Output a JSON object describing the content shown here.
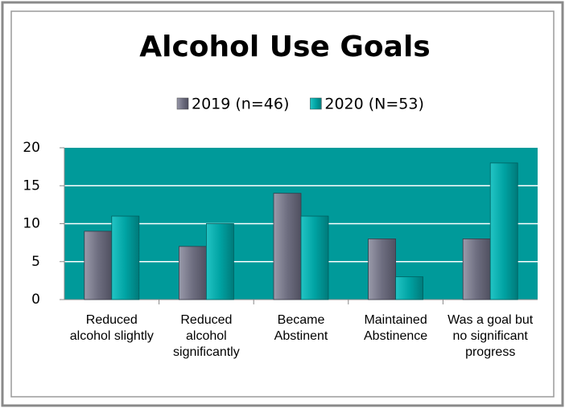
{
  "chart_data": {
    "type": "bar",
    "title": "Alcohol Use Goals",
    "categories": [
      "Reduced alcohol slightly",
      "Reduced alcohol significantly",
      "Became Abstinent",
      "Maintained Abstinence",
      "Was a goal but no significant progress"
    ],
    "series": [
      {
        "name": "2019 (n=46)",
        "color": "#6e6e80",
        "values": [
          9,
          7,
          14,
          8,
          8
        ]
      },
      {
        "name": "2020 (N=53)",
        "color": "#00a3a3",
        "values": [
          11,
          10,
          11,
          3,
          18
        ]
      }
    ],
    "ylim": [
      0,
      20
    ],
    "yticks": [
      0,
      5,
      10,
      15,
      20
    ],
    "grid": true,
    "plot_background": "#009a9a",
    "legend": "top"
  }
}
